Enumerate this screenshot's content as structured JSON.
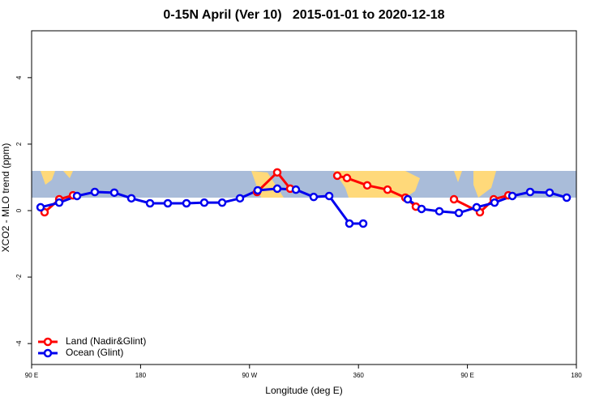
{
  "chart_data": {
    "type": "line",
    "title": "0-15N April (Ver 10)   2015-01-01 to 2020-12-18",
    "x_label": "Longitude (deg E)",
    "y_label": "XCO2 - MLO trend (ppm)",
    "xlim": [
      90,
      540
    ],
    "ylim": [
      -4.63,
      5.41
    ],
    "xticks": [
      {
        "value": 90,
        "label": "90 E"
      },
      180,
      {
        "value": 270,
        "label": "90 W"
      },
      360,
      {
        "value": 450,
        "label": "90 E"
      },
      {
        "value": 540,
        "label": "180"
      }
    ],
    "yticks": [
      -4,
      -2,
      0,
      2,
      4
    ],
    "legend": "bottom-left",
    "series": [
      {
        "name": "Land (Nadir&Glint)",
        "color": "#ff0000",
        "x": [
          100.7,
          112.8,
          124.2,
          null,
          276.2,
          292.9,
          303.6,
          null,
          342.5,
          350.5,
          367.2,
          384.0,
          398.7,
          407.4,
          null,
          438.9,
          460.3,
          471.7,
          483.8
        ],
        "values": [
          -0.05,
          0.34,
          0.46,
          null,
          0.56,
          1.15,
          0.66,
          null,
          1.05,
          0.98,
          0.76,
          0.63,
          0.39,
          0.12,
          null,
          0.34,
          -0.05,
          0.34,
          0.46
        ]
      },
      {
        "name": "Ocean (Glint)",
        "color": "#0000ee",
        "x": [
          97.4,
          112.8,
          127.5,
          142.2,
          158.3,
          172.4,
          187.8,
          202.5,
          217.9,
          232.6,
          247.4,
          262.1,
          276.8,
          292.9,
          308.3,
          323.0,
          335.8,
          352.5,
          363.9,
          null,
          400.7,
          412.1,
          426.8,
          442.9,
          457.6,
          472.4,
          487.1,
          501.8,
          517.9,
          532.0
        ],
        "values": [
          0.1,
          0.24,
          0.44,
          0.56,
          0.54,
          0.37,
          0.22,
          0.22,
          0.22,
          0.24,
          0.24,
          0.37,
          0.61,
          0.66,
          0.63,
          0.41,
          0.44,
          -0.39,
          -0.39,
          null,
          0.34,
          0.05,
          -0.02,
          -0.07,
          0.1,
          0.24,
          0.44,
          0.56,
          0.54,
          0.39
        ]
      }
    ]
  }
}
